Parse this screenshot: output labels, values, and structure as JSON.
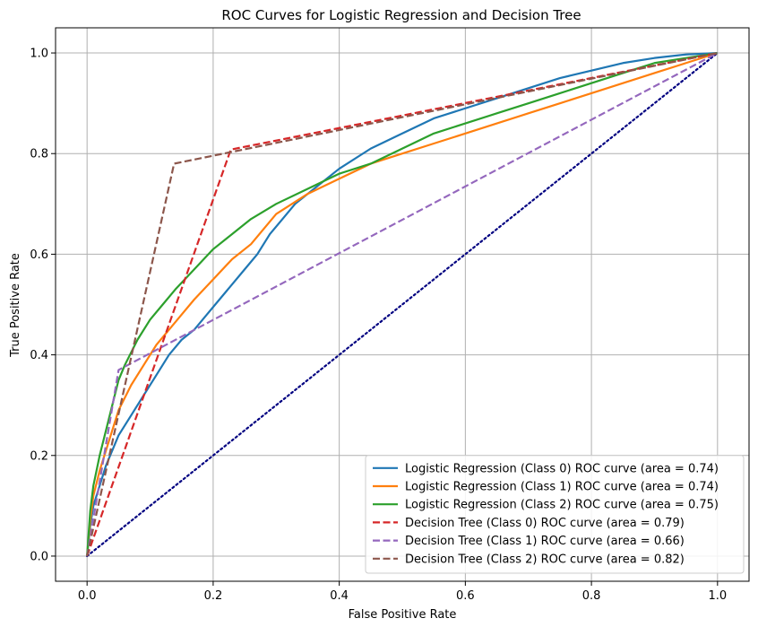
{
  "chart_data": {
    "type": "line",
    "title": "ROC Curves for Logistic Regression and Decision Tree",
    "xlabel": "False Positive Rate",
    "ylabel": "True Positive Rate",
    "xlim": [
      -0.05,
      1.05
    ],
    "ylim": [
      -0.05,
      1.05
    ],
    "xticks": [
      "0.0",
      "0.2",
      "0.4",
      "0.6",
      "0.8",
      "1.0"
    ],
    "yticks": [
      "0.0",
      "0.2",
      "0.4",
      "0.6",
      "0.8",
      "1.0"
    ],
    "grid": true,
    "legend_position": "lower-right",
    "series": [
      {
        "name": "Logistic Regression (Class 0) ROC curve (area = 0.74)",
        "color": "#1f77b4",
        "style": "solid",
        "x": [
          0.0,
          0.005,
          0.01,
          0.02,
          0.03,
          0.04,
          0.05,
          0.07,
          0.09,
          0.11,
          0.13,
          0.15,
          0.17,
          0.19,
          0.21,
          0.23,
          0.25,
          0.27,
          0.29,
          0.31,
          0.33,
          0.36,
          0.4,
          0.45,
          0.5,
          0.55,
          0.6,
          0.65,
          0.7,
          0.75,
          0.8,
          0.85,
          0.9,
          0.95,
          1.0
        ],
        "y": [
          0.0,
          0.06,
          0.1,
          0.14,
          0.18,
          0.21,
          0.24,
          0.28,
          0.32,
          0.36,
          0.4,
          0.43,
          0.45,
          0.48,
          0.51,
          0.54,
          0.57,
          0.6,
          0.64,
          0.67,
          0.7,
          0.73,
          0.77,
          0.81,
          0.84,
          0.87,
          0.89,
          0.91,
          0.93,
          0.95,
          0.965,
          0.98,
          0.99,
          0.997,
          1.0
        ]
      },
      {
        "name": "Logistic Regression (Class 1) ROC curve (area = 0.74)",
        "color": "#ff7f0e",
        "style": "solid",
        "x": [
          0.0,
          0.005,
          0.01,
          0.02,
          0.03,
          0.04,
          0.05,
          0.07,
          0.09,
          0.11,
          0.13,
          0.15,
          0.17,
          0.2,
          0.23,
          0.26,
          0.3,
          0.35,
          0.4,
          0.45,
          0.5,
          0.55,
          0.6,
          0.65,
          0.7,
          0.75,
          0.8,
          0.85,
          0.9,
          0.95,
          1.0
        ],
        "y": [
          0.0,
          0.07,
          0.12,
          0.17,
          0.21,
          0.25,
          0.29,
          0.34,
          0.38,
          0.42,
          0.45,
          0.48,
          0.51,
          0.55,
          0.59,
          0.62,
          0.68,
          0.72,
          0.75,
          0.78,
          0.8,
          0.82,
          0.84,
          0.86,
          0.88,
          0.9,
          0.92,
          0.94,
          0.96,
          0.98,
          1.0
        ]
      },
      {
        "name": "Logistic Regression (Class 2) ROC curve (area = 0.75)",
        "color": "#2ca02c",
        "style": "solid",
        "x": [
          0.0,
          0.005,
          0.01,
          0.02,
          0.03,
          0.04,
          0.05,
          0.06,
          0.08,
          0.1,
          0.12,
          0.14,
          0.17,
          0.2,
          0.23,
          0.26,
          0.3,
          0.35,
          0.4,
          0.45,
          0.5,
          0.55,
          0.6,
          0.65,
          0.7,
          0.75,
          0.8,
          0.85,
          0.9,
          0.95,
          1.0
        ],
        "y": [
          0.0,
          0.09,
          0.14,
          0.2,
          0.25,
          0.3,
          0.35,
          0.38,
          0.43,
          0.47,
          0.5,
          0.53,
          0.57,
          0.61,
          0.64,
          0.67,
          0.7,
          0.73,
          0.76,
          0.78,
          0.81,
          0.84,
          0.86,
          0.88,
          0.9,
          0.92,
          0.94,
          0.96,
          0.98,
          0.99,
          1.0
        ]
      },
      {
        "name": "Decision Tree (Class 0) ROC curve (area = 0.79)",
        "color": "#d62728",
        "style": "dashed",
        "x": [
          0.0,
          0.228,
          1.0
        ],
        "y": [
          0.0,
          0.808,
          1.0
        ]
      },
      {
        "name": "Decision Tree (Class 1) ROC curve (area = 0.66)",
        "color": "#9467bd",
        "style": "dashed",
        "x": [
          0.0,
          0.05,
          1.0
        ],
        "y": [
          0.0,
          0.37,
          1.0
        ]
      },
      {
        "name": "Decision Tree (Class 2) ROC curve (area = 0.82)",
        "color": "#8c564b",
        "style": "dashed",
        "x": [
          0.0,
          0.138,
          1.0
        ],
        "y": [
          0.0,
          0.78,
          1.0
        ]
      }
    ],
    "reference_line": {
      "color": "#000080",
      "style": "dotted",
      "x": [
        0.0,
        1.0
      ],
      "y": [
        0.0,
        1.0
      ]
    }
  }
}
